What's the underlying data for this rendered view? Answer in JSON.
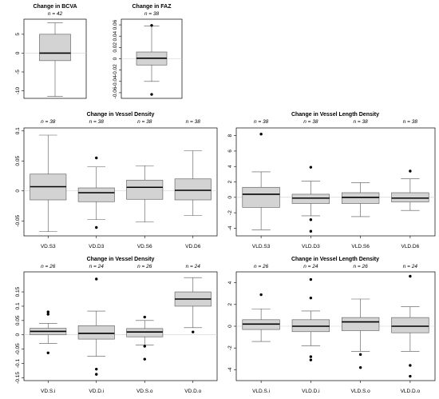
{
  "chart_data": [
    {
      "type": "box",
      "title": "Change in BCVA",
      "ylim": [
        -12,
        9
      ],
      "yticks": [
        -10,
        -5,
        0,
        5
      ],
      "reference_line": 0,
      "categories": [
        ""
      ],
      "n_labels": [
        "n = 42"
      ],
      "series": [
        {
          "min": -11.5,
          "q1": -2,
          "median": 0,
          "q3": 5,
          "max": 8,
          "outliers": []
        }
      ]
    },
    {
      "type": "box",
      "title": "Change in FAZ",
      "ylim": [
        -0.07,
        0.07
      ],
      "yticks": [
        -0.06,
        -0.04,
        -0.02,
        0,
        0.02,
        0.04,
        0.06
      ],
      "reference_line": 0,
      "categories": [
        ""
      ],
      "n_labels": [
        "n = 38"
      ],
      "series": [
        {
          "min": -0.04,
          "q1": -0.011,
          "median": 0.001,
          "q3": 0.012,
          "max": 0.058,
          "outliers": [
            0.059,
            -0.063
          ]
        }
      ]
    },
    {
      "type": "box",
      "title": "Change in Vessel Density",
      "ylim": [
        -0.075,
        0.105
      ],
      "yticks": [
        -0.05,
        0,
        0.05,
        0.1
      ],
      "reference_line": 0,
      "categories": [
        "VD.S3",
        "VD.D3",
        "VD.S6",
        "VD.D6"
      ],
      "n_labels": [
        "n = 38",
        "n = 38",
        "n = 38",
        "n = 38"
      ],
      "series": [
        {
          "min": -0.068,
          "q1": -0.015,
          "median": 0.007,
          "q3": 0.028,
          "max": 0.093,
          "outliers": []
        },
        {
          "min": -0.048,
          "q1": -0.018,
          "median": -0.003,
          "q3": 0.005,
          "max": 0.04,
          "outliers": [
            0.055,
            -0.061
          ]
        },
        {
          "min": -0.052,
          "q1": -0.014,
          "median": 0.006,
          "q3": 0.018,
          "max": 0.042,
          "outliers": []
        },
        {
          "min": -0.041,
          "q1": -0.015,
          "median": 0.001,
          "q3": 0.02,
          "max": 0.067,
          "outliers": []
        }
      ]
    },
    {
      "type": "box",
      "title": "Change in Vessel Length Density",
      "ylim": [
        -5,
        9
      ],
      "yticks": [
        -4,
        -2,
        0,
        2,
        4,
        6,
        8
      ],
      "reference_line": 0,
      "categories": [
        "VLD.S3",
        "VLD.D3",
        "VLD.S6",
        "VLD.D6"
      ],
      "n_labels": [
        "n = 38",
        "n = 38",
        "n = 38",
        "n = 38"
      ],
      "series": [
        {
          "min": -4.2,
          "q1": -1.3,
          "median": 0.4,
          "q3": 1.3,
          "max": 3.3,
          "outliers": [
            8.2
          ]
        },
        {
          "min": -2.4,
          "q1": -0.8,
          "median": -0.1,
          "q3": 0.4,
          "max": 2.1,
          "outliers": [
            3.9,
            -2.9,
            -4.4
          ]
        },
        {
          "min": -2.5,
          "q1": -0.8,
          "median": 0.0,
          "q3": 0.6,
          "max": 1.9,
          "outliers": []
        },
        {
          "min": -1.7,
          "q1": -0.6,
          "median": -0.1,
          "q3": 0.6,
          "max": 2.4,
          "outliers": [
            3.4
          ]
        }
      ]
    },
    {
      "type": "box",
      "title": "Change in Vessel Density",
      "ylim": [
        -0.16,
        0.22
      ],
      "yticks": [
        -0.15,
        -0.1,
        -0.05,
        0,
        0.05,
        0.1,
        0.15
      ],
      "reference_line": 0,
      "categories": [
        "VD.S.i",
        "VD.D.i",
        "VD.S.o",
        "VD.D.o"
      ],
      "n_labels": [
        "n = 26",
        "n = 24",
        "n = 26",
        "n = 24"
      ],
      "series": [
        {
          "min": -0.03,
          "q1": 0.0,
          "median": 0.012,
          "q3": 0.023,
          "max": 0.04,
          "outliers": [
            0.08,
            0.072,
            -0.063
          ]
        },
        {
          "min": -0.075,
          "q1": -0.015,
          "median": 0.005,
          "q3": 0.032,
          "max": 0.083,
          "outliers": [
            0.195,
            -0.12,
            -0.138
          ]
        },
        {
          "min": -0.035,
          "q1": -0.007,
          "median": 0.01,
          "q3": 0.022,
          "max": 0.05,
          "outliers": [
            0.062,
            -0.04,
            -0.085
          ]
        },
        {
          "min": 0.025,
          "q1": 0.1,
          "median": 0.125,
          "q3": 0.15,
          "max": 0.2,
          "outliers": [
            0.01
          ]
        }
      ]
    },
    {
      "type": "box",
      "title": "Change in Vessel Length Density",
      "ylim": [
        -5,
        5
      ],
      "yticks": [
        -4,
        -2,
        0,
        2,
        4
      ],
      "reference_line": 0,
      "categories": [
        "VLD.S.i",
        "VLD.D.i",
        "VLD.S.o",
        "VLD.D.o"
      ],
      "n_labels": [
        "n = 26",
        "n = 24",
        "n = 26",
        "n = 24"
      ],
      "series": [
        {
          "min": -1.4,
          "q1": -0.3,
          "median": 0.2,
          "q3": 0.6,
          "max": 1.6,
          "outliers": [
            2.9
          ]
        },
        {
          "min": -1.8,
          "q1": -0.5,
          "median": 0.0,
          "q3": 0.6,
          "max": 1.4,
          "outliers": [
            4.3,
            2.6,
            -2.8,
            -3.1
          ]
        },
        {
          "min": -2.3,
          "q1": -0.4,
          "median": 0.4,
          "q3": 0.8,
          "max": 2.5,
          "outliers": [
            -2.6,
            -3.8
          ]
        },
        {
          "min": -2.3,
          "q1": -0.6,
          "median": 0.0,
          "q3": 0.8,
          "max": 1.8,
          "outliers": [
            4.6,
            -3.6,
            -4.6
          ]
        }
      ]
    }
  ]
}
